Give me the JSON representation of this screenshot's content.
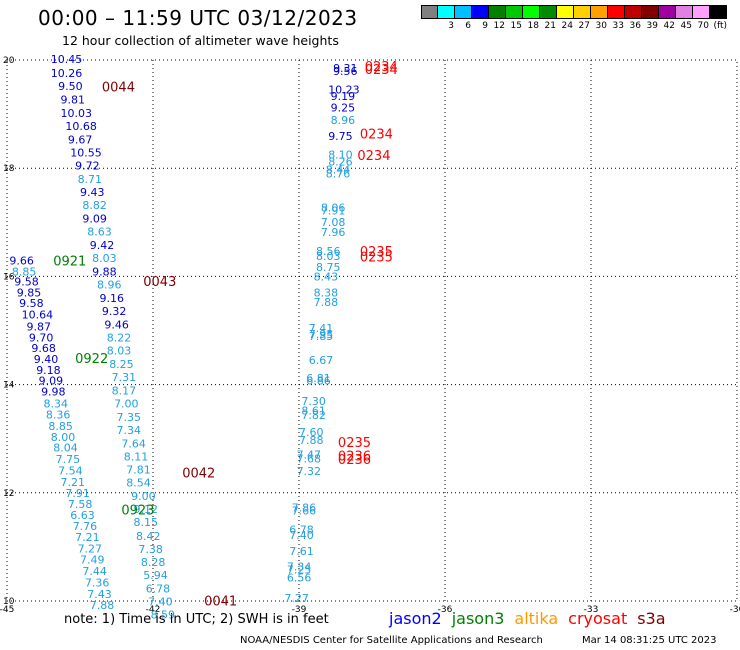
{
  "header": {
    "title": "00:00 – 11:59 UTC 03/12/2023",
    "subtitle": "12 hour collection of altimeter wave heights"
  },
  "colorbar": {
    "colors": [
      "#808080",
      "#00ffff",
      "#00c0ff",
      "#0000ff",
      "#008000",
      "#00c800",
      "#00ff00",
      "#008c00",
      "#ffff00",
      "#ffd000",
      "#ffa000",
      "#ff0000",
      "#c00000",
      "#800000",
      "#a000a0",
      "#e080e0",
      "#ffa0ff",
      "#000000"
    ],
    "labels": [
      "3",
      "6",
      "9",
      "12",
      "15",
      "18",
      "21",
      "24",
      "27",
      "30",
      "33",
      "36",
      "39",
      "42",
      "45",
      "70"
    ],
    "unit_label": "(ft)"
  },
  "axes": {
    "x_ticks": [
      "-45",
      "-42",
      "-39",
      "-36",
      "-33",
      "-30"
    ],
    "y_ticks": [
      "20",
      "18",
      "16",
      "14",
      "12",
      "10"
    ]
  },
  "colors": {
    "dark_blue": "#0000cc",
    "light_blue": "#22a0e0",
    "dark_red": "#800000",
    "red": "#ff0000",
    "green": "#008000"
  },
  "labels": [
    {
      "t": "10.45",
      "c": "dark_blue",
      "lon": -44.1,
      "lat": 19.94
    },
    {
      "t": "10.26",
      "c": "dark_blue",
      "lon": -44.1,
      "lat": 19.69
    },
    {
      "t": "9.50",
      "c": "dark_blue",
      "lon": -43.95,
      "lat": 19.45
    },
    {
      "t": "9.81",
      "c": "dark_blue",
      "lon": -43.9,
      "lat": 19.2
    },
    {
      "t": "10.03",
      "c": "dark_blue",
      "lon": -43.9,
      "lat": 18.95
    },
    {
      "t": "10.68",
      "c": "dark_blue",
      "lon": -43.8,
      "lat": 18.71
    },
    {
      "t": "9.67",
      "c": "dark_blue",
      "lon": -43.75,
      "lat": 18.46
    },
    {
      "t": "10.55",
      "c": "dark_blue",
      "lon": -43.7,
      "lat": 18.22
    },
    {
      "t": "9.72",
      "c": "dark_blue",
      "lon": -43.6,
      "lat": 17.98
    },
    {
      "t": "8.71",
      "c": "light_blue",
      "lon": -43.55,
      "lat": 17.73
    },
    {
      "t": "9.43",
      "c": "dark_blue",
      "lon": -43.5,
      "lat": 17.49
    },
    {
      "t": "8.82",
      "c": "light_blue",
      "lon": -43.45,
      "lat": 17.25
    },
    {
      "t": "9.09",
      "c": "dark_blue",
      "lon": -43.45,
      "lat": 17.0
    },
    {
      "t": "8.63",
      "c": "light_blue",
      "lon": -43.35,
      "lat": 16.76
    },
    {
      "t": "9.42",
      "c": "dark_blue",
      "lon": -43.3,
      "lat": 16.51
    },
    {
      "t": "8.03",
      "c": "light_blue",
      "lon": -43.25,
      "lat": 16.27
    },
    {
      "t": "9.88",
      "c": "dark_blue",
      "lon": -43.25,
      "lat": 16.02
    },
    {
      "t": "8.96",
      "c": "light_blue",
      "lon": -43.15,
      "lat": 15.78
    },
    {
      "t": "9.16",
      "c": "dark_blue",
      "lon": -43.1,
      "lat": 15.53
    },
    {
      "t": "9.32",
      "c": "dark_blue",
      "lon": -43.05,
      "lat": 15.29
    },
    {
      "t": "9.46",
      "c": "dark_blue",
      "lon": -43.0,
      "lat": 15.04
    },
    {
      "t": "8.22",
      "c": "light_blue",
      "lon": -42.95,
      "lat": 14.8
    },
    {
      "t": "8.03",
      "c": "light_blue",
      "lon": -42.95,
      "lat": 14.56
    },
    {
      "t": "8.25",
      "c": "light_blue",
      "lon": -42.9,
      "lat": 14.31
    },
    {
      "t": "7.31",
      "c": "light_blue",
      "lon": -42.85,
      "lat": 14.07
    },
    {
      "t": "8.17",
      "c": "light_blue",
      "lon": -42.85,
      "lat": 13.82
    },
    {
      "t": "7.00",
      "c": "light_blue",
      "lon": -42.8,
      "lat": 13.58
    },
    {
      "t": "7.35",
      "c": "light_blue",
      "lon": -42.75,
      "lat": 13.33
    },
    {
      "t": "7.34",
      "c": "light_blue",
      "lon": -42.75,
      "lat": 13.09
    },
    {
      "t": "7.64",
      "c": "light_blue",
      "lon": -42.65,
      "lat": 12.84
    },
    {
      "t": "8.11",
      "c": "light_blue",
      "lon": -42.6,
      "lat": 12.6
    },
    {
      "t": "7.81",
      "c": "light_blue",
      "lon": -42.55,
      "lat": 12.36
    },
    {
      "t": "8.54",
      "c": "light_blue",
      "lon": -42.55,
      "lat": 12.12
    },
    {
      "t": "9.00",
      "c": "light_blue",
      "lon": -42.45,
      "lat": 11.87
    },
    {
      "t": "9.12",
      "c": "light_blue",
      "lon": -42.4,
      "lat": 11.63
    },
    {
      "t": "8.15",
      "c": "light_blue",
      "lon": -42.4,
      "lat": 11.39
    },
    {
      "t": "8.42",
      "c": "light_blue",
      "lon": -42.35,
      "lat": 11.13
    },
    {
      "t": "7.38",
      "c": "light_blue",
      "lon": -42.3,
      "lat": 10.89
    },
    {
      "t": "8.28",
      "c": "light_blue",
      "lon": -42.25,
      "lat": 10.65
    },
    {
      "t": "5.94",
      "c": "light_blue",
      "lon": -42.2,
      "lat": 10.41
    },
    {
      "t": "6.78",
      "c": "light_blue",
      "lon": -42.15,
      "lat": 10.16
    },
    {
      "t": "7.40",
      "c": "light_blue",
      "lon": -42.1,
      "lat": 9.92
    },
    {
      "t": "8.59",
      "c": "light_blue",
      "lon": -42.05,
      "lat": 9.68
    },
    {
      "t": "9.66",
      "c": "dark_blue",
      "lon": -44.95,
      "lat": 16.22
    },
    {
      "t": "8.85",
      "c": "light_blue",
      "lon": -44.9,
      "lat": 16.02
    },
    {
      "t": "9.58",
      "c": "dark_blue",
      "lon": -44.85,
      "lat": 15.83
    },
    {
      "t": "9.85",
      "c": "dark_blue",
      "lon": -44.8,
      "lat": 15.63
    },
    {
      "t": "9.58",
      "c": "dark_blue",
      "lon": -44.75,
      "lat": 15.43
    },
    {
      "t": "10.64",
      "c": "dark_blue",
      "lon": -44.7,
      "lat": 15.22
    },
    {
      "t": "9.87",
      "c": "dark_blue",
      "lon": -44.6,
      "lat": 15.0
    },
    {
      "t": "9.70",
      "c": "dark_blue",
      "lon": -44.55,
      "lat": 14.8
    },
    {
      "t": "9.68",
      "c": "dark_blue",
      "lon": -44.5,
      "lat": 14.6
    },
    {
      "t": "9.40",
      "c": "dark_blue",
      "lon": -44.45,
      "lat": 14.4
    },
    {
      "t": "9.18",
      "c": "dark_blue",
      "lon": -44.4,
      "lat": 14.2
    },
    {
      "t": "9.09",
      "c": "dark_blue",
      "lon": -44.35,
      "lat": 14.0
    },
    {
      "t": "9.98",
      "c": "dark_blue",
      "lon": -44.3,
      "lat": 13.8
    },
    {
      "t": "8.34",
      "c": "light_blue",
      "lon": -44.25,
      "lat": 13.58
    },
    {
      "t": "8.36",
      "c": "light_blue",
      "lon": -44.2,
      "lat": 13.37
    },
    {
      "t": "8.85",
      "c": "light_blue",
      "lon": -44.15,
      "lat": 13.16
    },
    {
      "t": "8.00",
      "c": "light_blue",
      "lon": -44.1,
      "lat": 12.96
    },
    {
      "t": "8.04",
      "c": "light_blue",
      "lon": -44.05,
      "lat": 12.76
    },
    {
      "t": "7.75",
      "c": "light_blue",
      "lon": -44.0,
      "lat": 12.55
    },
    {
      "t": "7.54",
      "c": "light_blue",
      "lon": -43.95,
      "lat": 12.34
    },
    {
      "t": "7.21",
      "c": "light_blue",
      "lon": -43.9,
      "lat": 12.13
    },
    {
      "t": "7.91",
      "c": "light_blue",
      "lon": -43.8,
      "lat": 11.92
    },
    {
      "t": "7.58",
      "c": "light_blue",
      "lon": -43.75,
      "lat": 11.72
    },
    {
      "t": "6.63",
      "c": "light_blue",
      "lon": -43.7,
      "lat": 11.52
    },
    {
      "t": "7.76",
      "c": "light_blue",
      "lon": -43.65,
      "lat": 11.31
    },
    {
      "t": "7.21",
      "c": "light_blue",
      "lon": -43.6,
      "lat": 11.11
    },
    {
      "t": "7.27",
      "c": "light_blue",
      "lon": -43.55,
      "lat": 10.9
    },
    {
      "t": "7.49",
      "c": "light_blue",
      "lon": -43.5,
      "lat": 10.69
    },
    {
      "t": "7.44",
      "c": "light_blue",
      "lon": -43.45,
      "lat": 10.48
    },
    {
      "t": "7.36",
      "c": "light_blue",
      "lon": -43.4,
      "lat": 10.27
    },
    {
      "t": "7.43",
      "c": "light_blue",
      "lon": -43.35,
      "lat": 10.06
    },
    {
      "t": "7.88",
      "c": "light_blue",
      "lon": -43.3,
      "lat": 9.85
    },
    {
      "t": "9.31",
      "c": "dark_blue",
      "lon": -38.3,
      "lat": 19.78
    },
    {
      "t": "9.56",
      "c": "dark_blue",
      "lon": -38.3,
      "lat": 19.72
    },
    {
      "t": "10.23",
      "c": "dark_blue",
      "lon": -38.4,
      "lat": 19.38
    },
    {
      "t": "9.19",
      "c": "dark_blue",
      "lon": -38.35,
      "lat": 19.26
    },
    {
      "t": "9.25",
      "c": "dark_blue",
      "lon": -38.35,
      "lat": 19.05
    },
    {
      "t": "8.96",
      "c": "light_blue",
      "lon": -38.35,
      "lat": 18.82
    },
    {
      "t": "9.75",
      "c": "dark_blue",
      "lon": -38.4,
      "lat": 18.52
    },
    {
      "t": "8.10",
      "c": "light_blue",
      "lon": -38.4,
      "lat": 18.18
    },
    {
      "t": "8.26",
      "c": "light_blue",
      "lon": -38.4,
      "lat": 18.05
    },
    {
      "t": "8.44",
      "c": "light_blue",
      "lon": -38.45,
      "lat": 17.9
    },
    {
      "t": "8.76",
      "c": "light_blue",
      "lon": -38.45,
      "lat": 17.83
    },
    {
      "t": "8.06",
      "c": "light_blue",
      "lon": -38.55,
      "lat": 17.2
    },
    {
      "t": "7.91",
      "c": "light_blue",
      "lon": -38.55,
      "lat": 17.14
    },
    {
      "t": "7.08",
      "c": "light_blue",
      "lon": -38.55,
      "lat": 16.93
    },
    {
      "t": "7.96",
      "c": "light_blue",
      "lon": -38.55,
      "lat": 16.75
    },
    {
      "t": "8.56",
      "c": "light_blue",
      "lon": -38.65,
      "lat": 16.4
    },
    {
      "t": "8.03",
      "c": "light_blue",
      "lon": -38.65,
      "lat": 16.3
    },
    {
      "t": "8.75",
      "c": "light_blue",
      "lon": -38.65,
      "lat": 16.1
    },
    {
      "t": "8.43",
      "c": "light_blue",
      "lon": -38.7,
      "lat": 15.92
    },
    {
      "t": "8.38",
      "c": "light_blue",
      "lon": -38.7,
      "lat": 15.63
    },
    {
      "t": "7.88",
      "c": "light_blue",
      "lon": -38.7,
      "lat": 15.45
    },
    {
      "t": "7.41",
      "c": "light_blue",
      "lon": -38.8,
      "lat": 14.97
    },
    {
      "t": "7.95",
      "c": "light_blue",
      "lon": -38.8,
      "lat": 14.86
    },
    {
      "t": "7.85",
      "c": "light_blue",
      "lon": -38.8,
      "lat": 14.82
    },
    {
      "t": "6.67",
      "c": "light_blue",
      "lon": -38.8,
      "lat": 14.38
    },
    {
      "t": "6.81",
      "c": "light_blue",
      "lon": -38.85,
      "lat": 14.05
    },
    {
      "t": "6.86",
      "c": "light_blue",
      "lon": -38.85,
      "lat": 14.0
    },
    {
      "t": "7.30",
      "c": "light_blue",
      "lon": -38.95,
      "lat": 13.62
    },
    {
      "t": "8.61",
      "c": "light_blue",
      "lon": -38.95,
      "lat": 13.45
    },
    {
      "t": "7.82",
      "c": "light_blue",
      "lon": -38.95,
      "lat": 13.36
    },
    {
      "t": "7.60",
      "c": "light_blue",
      "lon": -39.0,
      "lat": 13.05
    },
    {
      "t": "7.88",
      "c": "light_blue",
      "lon": -39.0,
      "lat": 12.9
    },
    {
      "t": "7.47",
      "c": "light_blue",
      "lon": -39.05,
      "lat": 12.63
    },
    {
      "t": "7.68",
      "c": "light_blue",
      "lon": -39.05,
      "lat": 12.56
    },
    {
      "t": "7.32",
      "c": "light_blue",
      "lon": -39.05,
      "lat": 12.33
    },
    {
      "t": "7.86",
      "c": "light_blue",
      "lon": -39.15,
      "lat": 11.65
    },
    {
      "t": "7.66",
      "c": "light_blue",
      "lon": -39.15,
      "lat": 11.6
    },
    {
      "t": "6.78",
      "c": "light_blue",
      "lon": -39.2,
      "lat": 11.25
    },
    {
      "t": "7.40",
      "c": "light_blue",
      "lon": -39.2,
      "lat": 11.15
    },
    {
      "t": "7.61",
      "c": "light_blue",
      "lon": -39.2,
      "lat": 10.85
    },
    {
      "t": "7.34",
      "c": "light_blue",
      "lon": -39.25,
      "lat": 10.56
    },
    {
      "t": "7.25",
      "c": "light_blue",
      "lon": -39.25,
      "lat": 10.51
    },
    {
      "t": "6.56",
      "c": "light_blue",
      "lon": -39.25,
      "lat": 10.36
    },
    {
      "t": "7.27",
      "c": "light_blue",
      "lon": -39.3,
      "lat": 9.98
    },
    {
      "t": "0044",
      "c": "dark_red",
      "lon": -43.05,
      "lat": 19.42,
      "big": true
    },
    {
      "t": "0043",
      "c": "dark_red",
      "lon": -42.2,
      "lat": 15.82,
      "big": true
    },
    {
      "t": "0042",
      "c": "dark_red",
      "lon": -41.4,
      "lat": 12.28,
      "big": true
    },
    {
      "t": "0041",
      "c": "dark_red",
      "lon": -40.95,
      "lat": 9.92,
      "big": true
    },
    {
      "t": "0921",
      "c": "green",
      "lon": -44.05,
      "lat": 16.2,
      "big": true
    },
    {
      "t": "0922",
      "c": "green",
      "lon": -43.6,
      "lat": 14.4,
      "big": true
    },
    {
      "t": "0923",
      "c": "green",
      "lon": -42.65,
      "lat": 11.6,
      "big": true
    },
    {
      "t": "0234",
      "c": "red",
      "lon": -37.65,
      "lat": 19.74,
      "big": true
    },
    {
      "t": "0234",
      "c": "red",
      "lon": -37.65,
      "lat": 19.8,
      "big": true
    },
    {
      "t": "0234",
      "c": "red",
      "lon": -37.75,
      "lat": 18.55,
      "big": true
    },
    {
      "t": "0234",
      "c": "red",
      "lon": -37.8,
      "lat": 18.15,
      "big": true
    },
    {
      "t": "0235",
      "c": "red",
      "lon": -37.75,
      "lat": 16.38,
      "big": true
    },
    {
      "t": "0235",
      "c": "red",
      "lon": -37.75,
      "lat": 16.28,
      "big": true
    },
    {
      "t": "0235",
      "c": "red",
      "lon": -38.2,
      "lat": 12.85,
      "big": true
    },
    {
      "t": "0236",
      "c": "red",
      "lon": -38.2,
      "lat": 12.6,
      "big": true
    },
    {
      "t": "0236",
      "c": "red",
      "lon": -38.2,
      "lat": 12.53,
      "big": true
    }
  ],
  "footer": {
    "note": "note: 1) Time is in UTC; 2) SWH is in feet",
    "legend": [
      {
        "name": "jason2",
        "color": "#0000ff"
      },
      {
        "name": "jason3",
        "color": "#008000"
      },
      {
        "name": "altika",
        "color": "#ff9900"
      },
      {
        "name": "cryosat",
        "color": "#ff0000"
      },
      {
        "name": "s3a",
        "color": "#800000"
      }
    ],
    "credit": "NOAA/NESDIS Center for Satellite Applications and Research",
    "timestamp": "Mar 14 08:31:25 UTC 2023"
  }
}
